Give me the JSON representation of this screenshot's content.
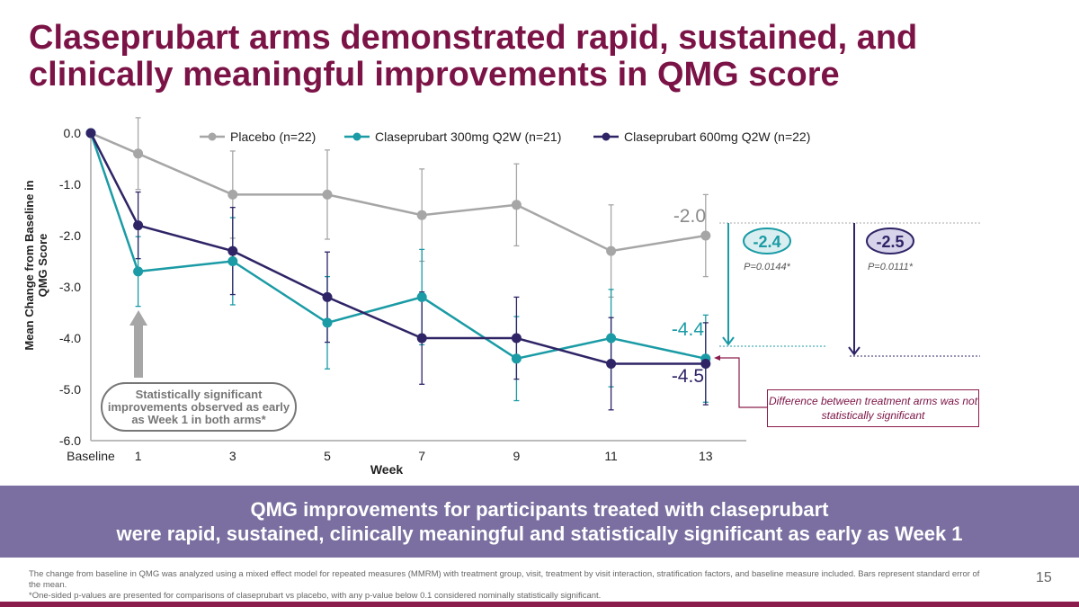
{
  "title": "Claseprubart arms demonstrated rapid, sustained, and clinically meaningful improvements in QMG score",
  "chart_data": {
    "type": "line",
    "xlabel": "Week",
    "ylabel": "Mean Change from Baseline in QMG Score",
    "categories": [
      "Baseline",
      "1",
      "3",
      "5",
      "7",
      "9",
      "11",
      "13"
    ],
    "x": [
      0,
      1,
      3,
      5,
      7,
      9,
      11,
      13
    ],
    "ylim": [
      -6.0,
      0.0
    ],
    "yticks": [
      "0.0",
      "-1.0",
      "-2.0",
      "-3.0",
      "-4.0",
      "-5.0",
      "-6.0"
    ],
    "grid": false,
    "legend": "top",
    "error_bars": "standard error of the mean",
    "series": [
      {
        "name": "Placebo (n=22)",
        "color": "#a6a6a6",
        "values": [
          0,
          -0.4,
          -1.2,
          -1.2,
          -1.6,
          -1.4,
          -2.3,
          -2.0
        ],
        "se": [
          0,
          0.7,
          0.85,
          0.87,
          0.9,
          0.8,
          0.9,
          0.8
        ]
      },
      {
        "name": "Claseprubart 300mg Q2W (n=21)",
        "color": "#1a9ba5",
        "values": [
          0,
          -2.7,
          -2.5,
          -3.7,
          -3.2,
          -4.4,
          -4.0,
          -4.4
        ],
        "se": [
          0,
          0.68,
          0.85,
          0.9,
          0.93,
          0.82,
          0.95,
          0.85
        ]
      },
      {
        "name": "Claseprubart 600mg Q2W  (n=22)",
        "color": "#2e2466",
        "values": [
          0,
          -1.8,
          -2.3,
          -3.2,
          -4.0,
          -4.0,
          -4.5,
          -4.5
        ],
        "se": [
          0,
          0.65,
          0.85,
          0.88,
          0.9,
          0.8,
          0.9,
          0.8
        ]
      }
    ],
    "annotations": {
      "placebo_end": "-2.0",
      "low_end": "-4.4",
      "high_end": "-4.5",
      "diff_300": "-2.4",
      "p_300": "P=0.0144*",
      "diff_600": "-2.5",
      "p_600": "P=0.0111*",
      "week1_callout": "Statistically significant improvements observed as early as Week 1 in both arms*",
      "arms_callout": "Difference between treatment arms was not statistically significant"
    }
  },
  "banner": {
    "line1": "QMG improvements for participants treated with claseprubart",
    "line2": "were rapid, sustained, clinically meaningful and statistically significant as early as Week 1"
  },
  "footnotes": {
    "line1": "The change from baseline in QMG was analyzed using a mixed effect model for repeated measures (MMRM) with treatment group, visit, treatment by visit interaction, stratification factors, and baseline measure included. Bars represent standard error of the mean.",
    "line2": "*One-sided p-values are presented for comparisons of claseprubart vs placebo, with any p-value below 0.1 considered nominally statistically significant."
  },
  "page_number": "15",
  "colors": {
    "title": "#7b1346",
    "banner": "#7a6fa0",
    "teal": "#1a9ba5",
    "navy": "#2e2466",
    "gray": "#a6a6a6",
    "maroon": "#8a1d4b"
  }
}
